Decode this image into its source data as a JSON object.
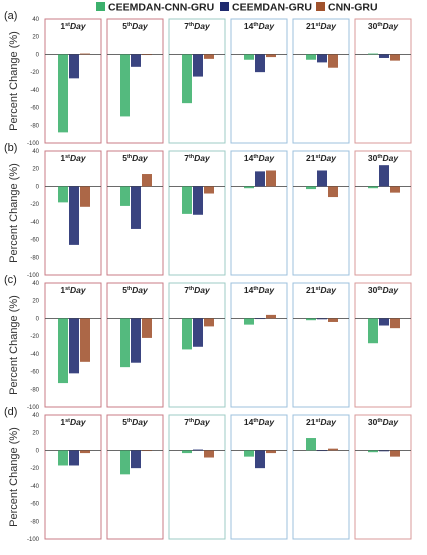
{
  "legend": [
    {
      "name": "CEEMDAN-CNN-GRU",
      "color": "#3cb06c"
    },
    {
      "name": "CEEMDAN-GRU",
      "color": "#1f2a6e"
    },
    {
      "name": "CNN-GRU",
      "color": "#a0522d"
    }
  ],
  "chart_data": {
    "type": "bar",
    "ylabel": "Percent Change (%)",
    "ylim": [
      -100,
      40
    ],
    "yticks": [
      40,
      20,
      0,
      -20,
      -40,
      -60,
      -80,
      -100
    ],
    "grid": false,
    "legend_position": "top",
    "panel_frame_colors": [
      "#c97b86",
      "#c97b86",
      "#9ecbc4",
      "#9cc0de",
      "#9cc0de",
      "#d99a9a"
    ],
    "rows": [
      {
        "label": "(a)",
        "panels": [
          {
            "day": "1",
            "suffix": "st",
            "word": "Day",
            "values": [
              -88,
              -27,
              1
            ]
          },
          {
            "day": "5",
            "suffix": "th",
            "word": "Day",
            "values": [
              -70,
              -14,
              0
            ]
          },
          {
            "day": "7",
            "suffix": "th",
            "word": "Day",
            "values": [
              -55,
              -25,
              -5
            ]
          },
          {
            "day": "14",
            "suffix": "th",
            "word": "Day",
            "values": [
              -6,
              -20,
              -3
            ]
          },
          {
            "day": "21",
            "suffix": "st",
            "word": "Day",
            "values": [
              -6,
              -9,
              -15
            ]
          },
          {
            "day": "30",
            "suffix": "th",
            "word": "Day",
            "values": [
              1,
              -4,
              -7
            ]
          }
        ]
      },
      {
        "label": "(b)",
        "panels": [
          {
            "day": "1",
            "suffix": "st",
            "word": "Day",
            "values": [
              -18,
              -66,
              -23
            ]
          },
          {
            "day": "5",
            "suffix": "th",
            "word": "Day",
            "values": [
              -22,
              -48,
              14
            ]
          },
          {
            "day": "7",
            "suffix": "th",
            "word": "Day",
            "values": [
              -31,
              -32,
              -8
            ]
          },
          {
            "day": "14",
            "suffix": "th",
            "word": "Day",
            "values": [
              -2,
              17,
              18
            ]
          },
          {
            "day": "21",
            "suffix": "st",
            "word": "Day",
            "values": [
              -3,
              18,
              -12
            ]
          },
          {
            "day": "30",
            "suffix": "th",
            "word": "Day",
            "values": [
              -2,
              24,
              -7
            ]
          }
        ]
      },
      {
        "label": "(c)",
        "panels": [
          {
            "day": "1",
            "suffix": "st",
            "word": "Day",
            "values": [
              -73,
              -62,
              -49
            ]
          },
          {
            "day": "5",
            "suffix": "th",
            "word": "Day",
            "values": [
              -55,
              -50,
              -22
            ]
          },
          {
            "day": "7",
            "suffix": "th",
            "word": "Day",
            "values": [
              -35,
              -32,
              -9
            ]
          },
          {
            "day": "14",
            "suffix": "th",
            "word": "Day",
            "values": [
              -7,
              0,
              4
            ]
          },
          {
            "day": "21",
            "suffix": "st",
            "word": "Day",
            "values": [
              -2,
              -1,
              -4
            ]
          },
          {
            "day": "30",
            "suffix": "th",
            "word": "Day",
            "values": [
              -28,
              -8,
              -11
            ]
          }
        ]
      },
      {
        "label": "(d)",
        "panels": [
          {
            "day": "1",
            "suffix": "st",
            "word": "Day",
            "values": [
              -17,
              -17,
              -3
            ]
          },
          {
            "day": "5",
            "suffix": "th",
            "word": "Day",
            "values": [
              -27,
              -20,
              0
            ]
          },
          {
            "day": "7",
            "suffix": "th",
            "word": "Day",
            "values": [
              -3,
              1,
              -8
            ]
          },
          {
            "day": "14",
            "suffix": "th",
            "word": "Day",
            "values": [
              -7,
              -20,
              -3
            ]
          },
          {
            "day": "21",
            "suffix": "st",
            "word": "Day",
            "values": [
              14,
              0,
              2
            ]
          },
          {
            "day": "30",
            "suffix": "th",
            "word": "Day",
            "values": [
              -2,
              -1,
              -7
            ]
          }
        ]
      }
    ]
  }
}
